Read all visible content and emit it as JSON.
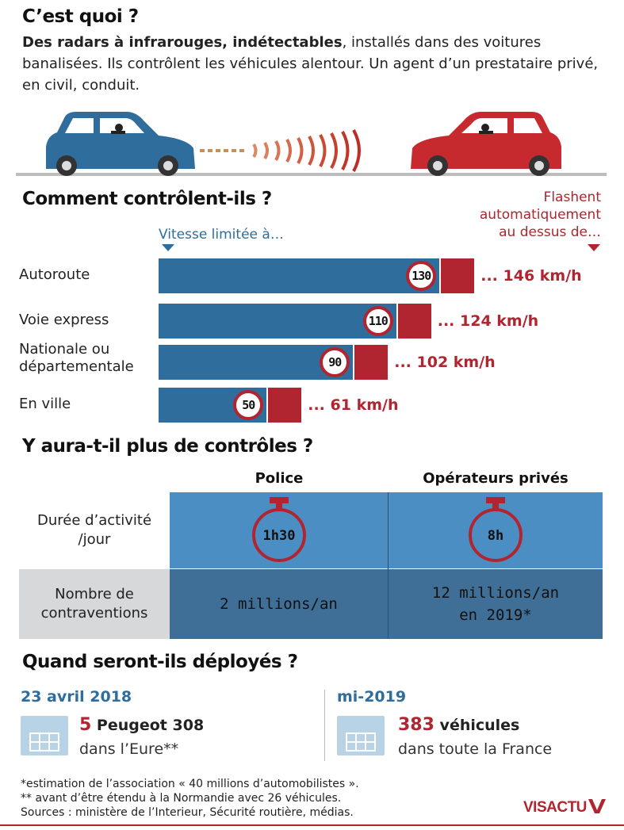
{
  "section1": {
    "title": "C’est quoi ?",
    "intro_bold": "Des radars à infrarouges, indétectables",
    "intro_rest": ", installés dans des voitures banalisées. Ils contrôlent les véhicules alentour. Un agent d’un prestataire privé, en civil, conduit."
  },
  "section2": {
    "title": "Comment contrôlent-ils ?",
    "legend_limit": "Vitesse limitée à…",
    "legend_flash_1": "Flashent",
    "legend_flash_2": "automatiquement",
    "legend_flash_3": "au dessus de…"
  },
  "chart_data": {
    "type": "bar",
    "categories": [
      "Autoroute",
      "Voie express",
      "Nationale ou départementale",
      "En ville"
    ],
    "series": [
      {
        "name": "Vitesse limitée à…",
        "values": [
          130,
          110,
          90,
          50
        ]
      },
      {
        "name": "Flashent automatiquement au dessus de…",
        "values": [
          146,
          124,
          102,
          61
        ]
      }
    ],
    "label_lines": [
      [
        "Autoroute"
      ],
      [
        "Voie express"
      ],
      [
        "Nationale ou",
        "départementale"
      ],
      [
        "En ville"
      ]
    ],
    "limit_labels": [
      "130",
      "110",
      "90",
      "50"
    ],
    "flash_labels": [
      "... 146 km/h",
      "... 124 km/h",
      "... 102 km/h",
      "... 61 km/h"
    ],
    "unit": "km/h",
    "colors": {
      "limit": "#2e6d9c",
      "flash": "#b0252f"
    }
  },
  "section3": {
    "title": "Y aura-t-il plus de contrôles ?",
    "col_police": "Police",
    "col_private": "Opérateurs privés",
    "row1_label_1": "Durée d’activité",
    "row1_label_2": "/jour",
    "row2_label_1": "Nombre de",
    "row2_label_2": "contraventions",
    "police_duration": "1h30",
    "private_duration": "8h",
    "police_count": "2 millions/an",
    "private_count_1": "12 millions/an",
    "private_count_2": "en 2019*"
  },
  "section4": {
    "title": "Quand seront-ils déployés ?",
    "left_date": "23 avril 2018",
    "left_num": "5",
    "left_text": " Peugeot 308",
    "left_sub": "dans l’Eure**",
    "right_date": "mi-2019",
    "right_num": "383",
    "right_text": " véhicules",
    "right_sub": "dans toute la France"
  },
  "footnotes": {
    "line1": "*estimation de l’association « 40 millions d’automobilistes ».",
    "line2": "** avant d’être étendu à la Normandie avec 26 véhicules.",
    "line3": "Sources : ministère de l’Interieur, Sécurité routière, médias."
  },
  "logo": {
    "text": "VISACTU"
  },
  "colors": {
    "blue": "#2e6d9c",
    "red": "#b0252f",
    "light_blue": "#4b8ec3",
    "dark_cell": "#3f6f97",
    "grey_cell": "#d6d8da"
  }
}
